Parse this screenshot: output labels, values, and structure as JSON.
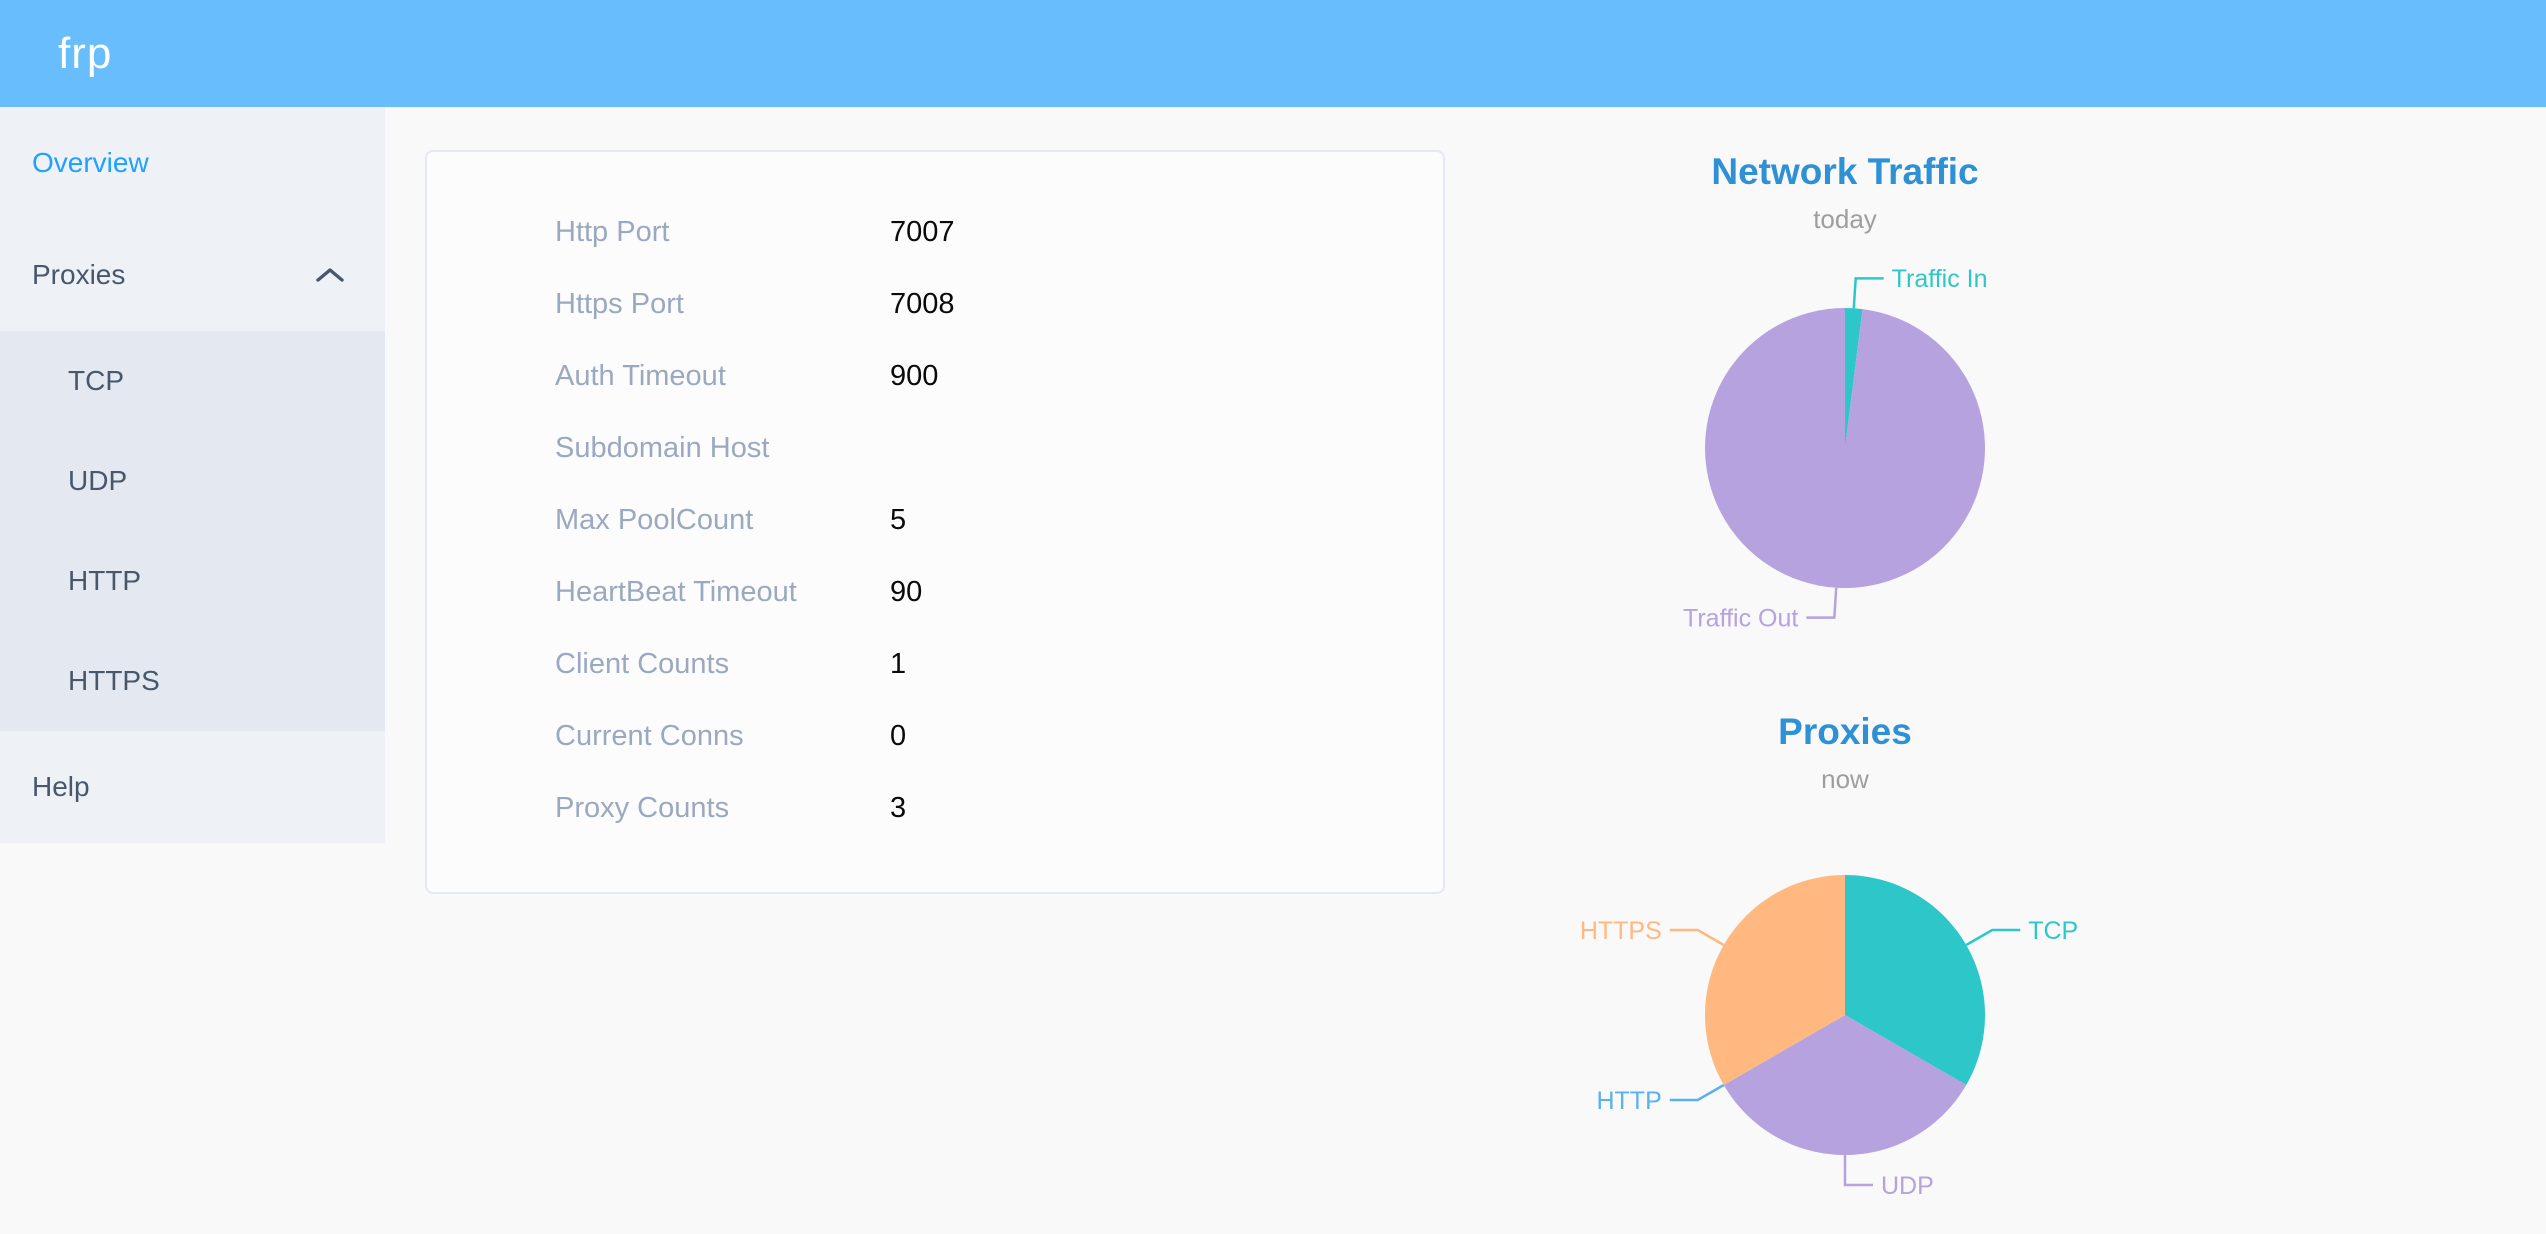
{
  "header": {
    "logo": "frp"
  },
  "sidebar": {
    "items": [
      {
        "label": "Overview",
        "active": true
      },
      {
        "label": "Proxies",
        "expanded": true
      }
    ],
    "submenu": [
      "TCP",
      "UDP",
      "HTTP",
      "HTTPS"
    ],
    "help_label": "Help",
    "active_color": "#20a0ff",
    "text_color": "#48576a"
  },
  "card": {
    "rows": [
      {
        "label": "Http Port",
        "value": "7007"
      },
      {
        "label": "Https Port",
        "value": "7008"
      },
      {
        "label": "Auth Timeout",
        "value": "900"
      },
      {
        "label": "Subdomain Host",
        "value": ""
      },
      {
        "label": "Max PoolCount",
        "value": "5"
      },
      {
        "label": "HeartBeat Timeout",
        "value": "90"
      },
      {
        "label": "Client Counts",
        "value": "1"
      },
      {
        "label": "Current Conns",
        "value": "0"
      },
      {
        "label": "Proxy Counts",
        "value": "3"
      }
    ]
  },
  "chart_data": [
    {
      "type": "pie",
      "title": "Network Traffic",
      "subtitle": "today",
      "legend": "none",
      "label_position": "outside-callout",
      "series": [
        {
          "name": "Traffic In",
          "value": 2,
          "color": "#2ec7c9"
        },
        {
          "name": "Traffic Out",
          "value": 98,
          "color": "#b6a2de"
        }
      ],
      "note": "values are estimated percentages of the pie"
    },
    {
      "type": "pie",
      "title": "Proxies",
      "subtitle": "now",
      "legend": "none",
      "label_position": "outside-callout",
      "series": [
        {
          "name": "TCP",
          "value": 1,
          "color": "#2ec7c9"
        },
        {
          "name": "UDP",
          "value": 1,
          "color": "#b6a2de"
        },
        {
          "name": "HTTP",
          "value": 0,
          "color": "#5ab1ef"
        },
        {
          "name": "HTTPS",
          "value": 1,
          "color": "#ffb980"
        }
      ]
    }
  ],
  "colors": {
    "header_bg": "#68bdfc",
    "sidebar_bg": "#eef1f6",
    "submenu_bg": "#e4e8f1",
    "chart_title": "#2e90d5"
  }
}
